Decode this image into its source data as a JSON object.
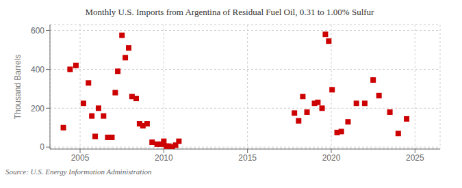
{
  "chart_data": {
    "type": "scatter",
    "title": "Monthly U.S. Imports from Argentina of Residual Fuel Oil, 0.31 to 1.00% Sulfur",
    "y_label": "Thousand Barrels",
    "annotations": [
      "Source: U.S. Energy Information Administration"
    ],
    "color": "#CC0000",
    "marker": "square",
    "grid": true,
    "xlim": [
      2003.2,
      2026.5
    ],
    "ylim": [
      -10,
      630
    ],
    "xticks": [
      2005,
      2010,
      2015,
      2020,
      2025
    ],
    "yticks": [
      0,
      200,
      400,
      600
    ],
    "x": [
      2004.0,
      2004.4,
      2004.75,
      2005.2,
      2005.5,
      2005.7,
      2005.9,
      2006.1,
      2006.4,
      2006.65,
      2006.9,
      2007.1,
      2007.25,
      2007.5,
      2007.7,
      2007.9,
      2008.1,
      2008.35,
      2008.55,
      2008.75,
      2009.0,
      2009.3,
      2009.6,
      2009.85,
      2010.0,
      2010.15,
      2010.3,
      2010.5,
      2010.7,
      2010.9,
      2017.8,
      2018.05,
      2018.3,
      2018.55,
      2019.0,
      2019.2,
      2019.45,
      2019.65,
      2019.85,
      2020.05,
      2020.35,
      2020.6,
      2021.0,
      2021.5,
      2022.0,
      2022.5,
      2022.85,
      2023.5,
      2024.0,
      2024.5
    ],
    "values": [
      100,
      400,
      420,
      225,
      330,
      160,
      55,
      200,
      160,
      50,
      50,
      280,
      390,
      575,
      460,
      510,
      260,
      250,
      120,
      110,
      120,
      25,
      15,
      15,
      30,
      5,
      5,
      0,
      10,
      30,
      175,
      135,
      260,
      180,
      225,
      230,
      200,
      580,
      545,
      295,
      75,
      80,
      130,
      225,
      225,
      345,
      265,
      180,
      70,
      145
    ]
  }
}
